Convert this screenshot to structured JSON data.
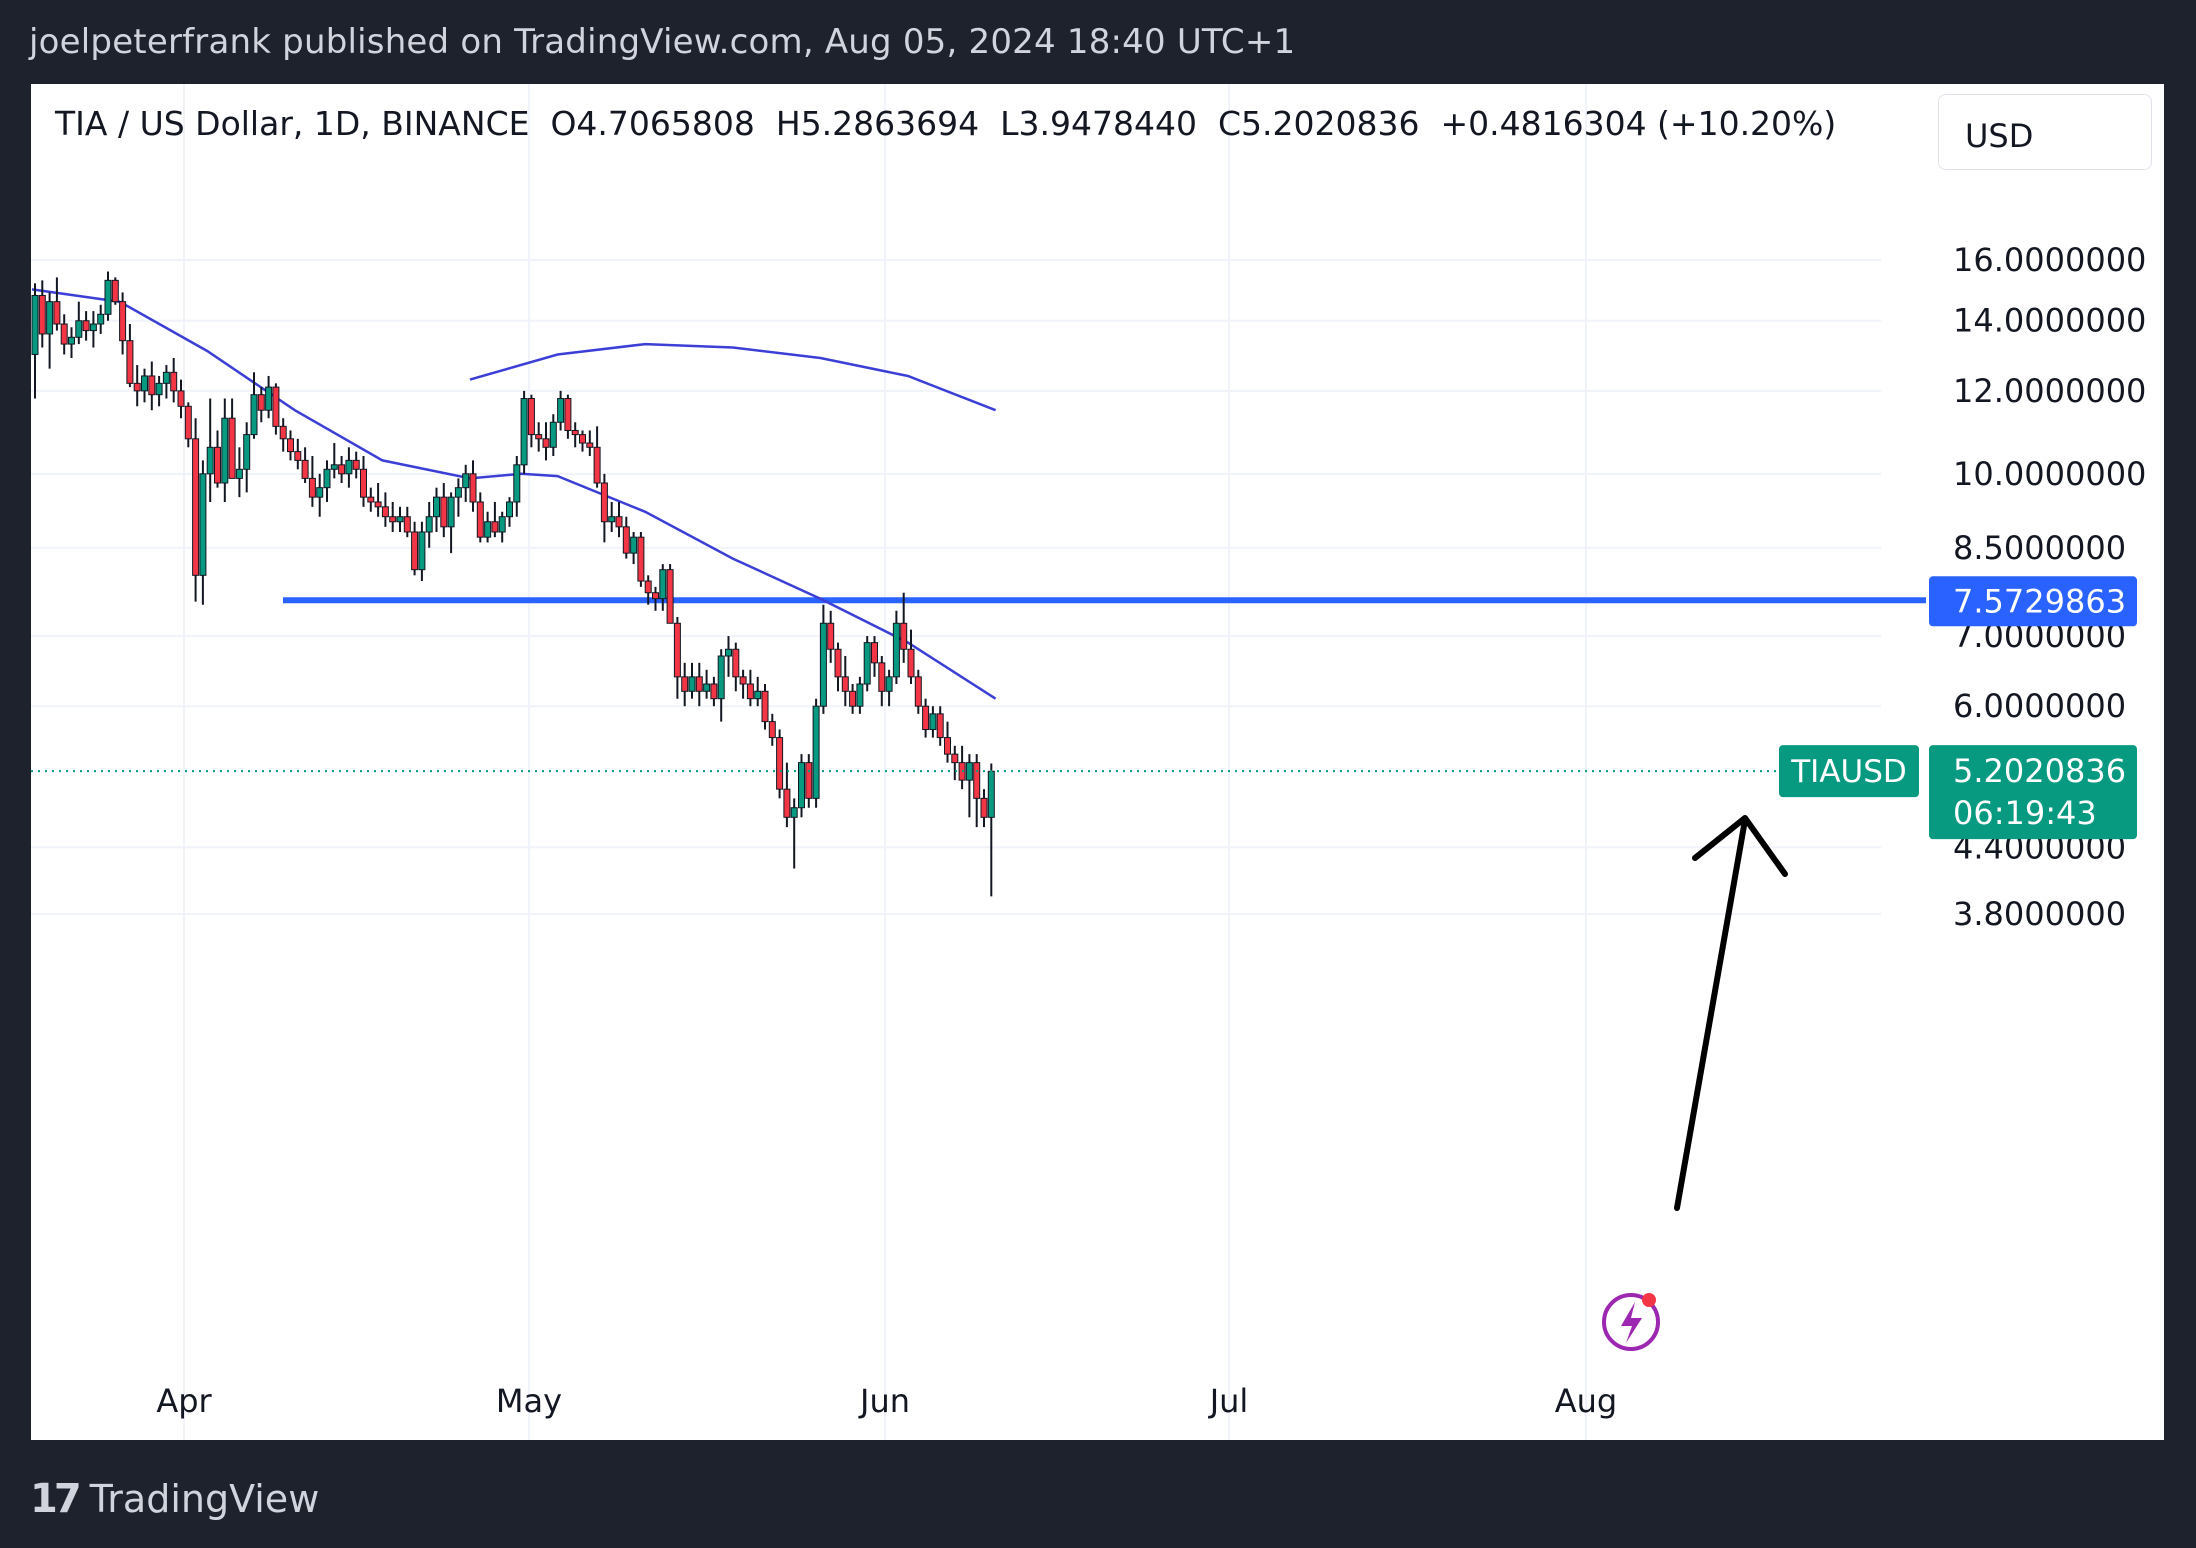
{
  "header": {
    "publish_line": "joelpeterfrank published on TradingView.com, Aug 05, 2024 18:40 UTC+1"
  },
  "legend": {
    "symbol": "TIA / US Dollar, 1D, BINANCE",
    "open": "O4.7065808",
    "high": "H5.2863694",
    "low": "L3.9478440",
    "close": "C5.2020836",
    "change": "+0.4816304 (+10.20%)"
  },
  "currency": "USD",
  "price_axis": {
    "ticks": [
      "16.0000000",
      "14.0000000",
      "12.0000000",
      "10.0000000",
      "8.5000000",
      "7.0000000",
      "6.0000000",
      "4.4000000",
      "3.8000000"
    ],
    "highlight_label": "7.5729863",
    "symbol_tag": "TIAUSD",
    "last_price": "5.2020836",
    "countdown": "06:19:43"
  },
  "time_axis": {
    "ticks": [
      "Apr",
      "May",
      "Jun",
      "Jul",
      "Aug"
    ]
  },
  "footer": {
    "brand": "TradingView"
  },
  "colors": {
    "up": "#089981",
    "down": "#f23645",
    "ma": "#3c3fd6",
    "level": "#2962ff",
    "badge": "#089981",
    "background": "#1e222d"
  },
  "chart_data": {
    "type": "candlestick",
    "title": "TIA / US Dollar, 1D, BINANCE",
    "x_ticks": [
      "Apr",
      "May",
      "Jun",
      "Jul",
      "Aug"
    ],
    "y_ticks": [
      16.0,
      14.0,
      12.0,
      10.0,
      8.5,
      7.0,
      6.0,
      4.4,
      3.8
    ],
    "y_scale": "log",
    "horizontal_level": 7.5729863,
    "last_close": 5.2020836,
    "ohlc_last": {
      "open": 4.7065808,
      "high": 5.2863694,
      "low": 3.947844,
      "close": 5.2020836,
      "change": 0.4816304,
      "change_pct": 10.2
    },
    "candles": [
      [
        13.0,
        15.2,
        11.8,
        14.8
      ],
      [
        14.8,
        15.3,
        13.2,
        13.6
      ],
      [
        13.6,
        14.9,
        12.6,
        14.6
      ],
      [
        14.6,
        15.4,
        13.7,
        13.9
      ],
      [
        13.9,
        14.2,
        13.0,
        13.3
      ],
      [
        13.3,
        13.8,
        12.9,
        13.5
      ],
      [
        13.5,
        14.6,
        13.3,
        14.0
      ],
      [
        14.0,
        14.3,
        13.4,
        13.7
      ],
      [
        13.7,
        14.3,
        13.2,
        13.9
      ],
      [
        13.9,
        14.5,
        13.6,
        14.2
      ],
      [
        14.2,
        15.6,
        14.0,
        15.3
      ],
      [
        15.3,
        15.4,
        14.5,
        14.6
      ],
      [
        14.6,
        14.9,
        13.0,
        13.4
      ],
      [
        13.4,
        13.9,
        12.1,
        12.2
      ],
      [
        12.2,
        12.7,
        11.6,
        12.0
      ],
      [
        12.0,
        12.6,
        11.7,
        12.4
      ],
      [
        12.4,
        12.8,
        11.5,
        11.9
      ],
      [
        11.9,
        12.4,
        11.6,
        12.2
      ],
      [
        12.2,
        12.7,
        11.8,
        12.5
      ],
      [
        12.5,
        12.9,
        11.7,
        12.0
      ],
      [
        12.0,
        12.3,
        11.3,
        11.6
      ],
      [
        11.6,
        11.7,
        10.6,
        10.8
      ],
      [
        10.8,
        11.3,
        7.55,
        8.0
      ],
      [
        8.0,
        10.3,
        7.5,
        10.0
      ],
      [
        10.0,
        11.8,
        9.4,
        10.6
      ],
      [
        10.6,
        11.0,
        9.7,
        9.8
      ],
      [
        9.8,
        11.8,
        9.4,
        11.3
      ],
      [
        11.3,
        11.8,
        9.9,
        9.9
      ],
      [
        9.9,
        10.6,
        9.5,
        10.1
      ],
      [
        10.1,
        11.2,
        9.6,
        10.9
      ],
      [
        10.9,
        12.5,
        10.8,
        11.9
      ],
      [
        11.9,
        12.1,
        11.2,
        11.5
      ],
      [
        11.5,
        12.4,
        11.3,
        12.1
      ],
      [
        12.1,
        12.2,
        10.9,
        11.1
      ],
      [
        11.1,
        11.3,
        10.5,
        10.8
      ],
      [
        10.8,
        11.0,
        10.3,
        10.5
      ],
      [
        10.5,
        10.8,
        10.1,
        10.3
      ],
      [
        10.3,
        10.6,
        9.8,
        9.9
      ],
      [
        9.9,
        10.4,
        9.3,
        9.5
      ],
      [
        9.5,
        10.0,
        9.1,
        9.7
      ],
      [
        9.7,
        10.3,
        9.4,
        10.1
      ],
      [
        10.1,
        10.7,
        9.9,
        10.2
      ],
      [
        10.2,
        10.4,
        9.8,
        10.0
      ],
      [
        10.0,
        10.6,
        9.7,
        10.3
      ],
      [
        10.3,
        10.5,
        9.9,
        10.1
      ],
      [
        10.1,
        10.4,
        9.3,
        9.5
      ],
      [
        9.5,
        9.7,
        9.2,
        9.4
      ],
      [
        9.4,
        9.8,
        9.1,
        9.3
      ],
      [
        9.3,
        9.6,
        8.9,
        9.1
      ],
      [
        9.1,
        9.4,
        8.8,
        9.0
      ],
      [
        9.0,
        9.3,
        8.8,
        9.1
      ],
      [
        9.1,
        9.3,
        8.7,
        8.8
      ],
      [
        8.8,
        9.0,
        8.0,
        8.1
      ],
      [
        8.1,
        9.0,
        7.9,
        8.8
      ],
      [
        8.8,
        9.4,
        8.5,
        9.1
      ],
      [
        9.1,
        9.7,
        8.8,
        9.5
      ],
      [
        9.5,
        9.8,
        8.7,
        8.9
      ],
      [
        8.9,
        9.6,
        8.4,
        9.5
      ],
      [
        9.5,
        9.9,
        9.1,
        9.7
      ],
      [
        9.7,
        10.2,
        9.4,
        10.0
      ],
      [
        10.0,
        10.3,
        9.2,
        9.4
      ],
      [
        9.4,
        9.6,
        8.6,
        8.7
      ],
      [
        8.7,
        9.2,
        8.6,
        9.0
      ],
      [
        9.0,
        9.4,
        8.7,
        8.8
      ],
      [
        8.8,
        9.2,
        8.6,
        9.1
      ],
      [
        9.1,
        9.5,
        8.9,
        9.4
      ],
      [
        9.4,
        10.4,
        9.1,
        10.2
      ],
      [
        10.2,
        12.0,
        10.0,
        11.8
      ],
      [
        11.8,
        11.9,
        10.6,
        10.9
      ],
      [
        10.9,
        11.2,
        10.5,
        10.8
      ],
      [
        10.8,
        11.2,
        10.3,
        10.6
      ],
      [
        10.6,
        11.4,
        10.4,
        11.2
      ],
      [
        11.2,
        12.0,
        11.0,
        11.8
      ],
      [
        11.8,
        11.9,
        10.8,
        11.0
      ],
      [
        11.0,
        11.2,
        10.6,
        10.9
      ],
      [
        10.9,
        11.0,
        10.5,
        10.7
      ],
      [
        10.7,
        11.0,
        10.4,
        10.6
      ],
      [
        10.6,
        11.1,
        9.7,
        9.8
      ],
      [
        9.8,
        10.0,
        8.6,
        9.0
      ],
      [
        9.0,
        9.4,
        8.8,
        9.1
      ],
      [
        9.1,
        9.4,
        8.7,
        8.9
      ],
      [
        8.9,
        9.1,
        8.3,
        8.4
      ],
      [
        8.4,
        8.8,
        8.2,
        8.7
      ],
      [
        8.7,
        8.8,
        7.8,
        7.9
      ],
      [
        7.9,
        8.0,
        7.5,
        7.7
      ],
      [
        7.7,
        7.8,
        7.4,
        7.6
      ],
      [
        7.6,
        8.2,
        7.4,
        8.1
      ],
      [
        8.1,
        8.2,
        7.2,
        7.2
      ],
      [
        7.2,
        7.3,
        6.1,
        6.4
      ],
      [
        6.4,
        6.6,
        6.0,
        6.2
      ],
      [
        6.2,
        6.6,
        6.1,
        6.4
      ],
      [
        6.4,
        6.6,
        6.0,
        6.2
      ],
      [
        6.2,
        6.5,
        6.1,
        6.3
      ],
      [
        6.3,
        6.4,
        6.0,
        6.1
      ],
      [
        6.1,
        6.8,
        5.8,
        6.7
      ],
      [
        6.7,
        7.0,
        6.4,
        6.8
      ],
      [
        6.8,
        6.9,
        6.2,
        6.4
      ],
      [
        6.4,
        6.5,
        6.1,
        6.3
      ],
      [
        6.3,
        6.5,
        6.0,
        6.1
      ],
      [
        6.1,
        6.4,
        6.0,
        6.2
      ],
      [
        6.2,
        6.3,
        5.7,
        5.8
      ],
      [
        5.8,
        5.9,
        5.5,
        5.6
      ],
      [
        5.6,
        5.7,
        4.9,
        5.0
      ],
      [
        5.0,
        5.3,
        4.6,
        4.7
      ],
      [
        4.7,
        4.9,
        4.2,
        4.8
      ],
      [
        4.8,
        5.4,
        4.7,
        5.3
      ],
      [
        5.3,
        5.4,
        4.8,
        4.9
      ],
      [
        4.9,
        6.1,
        4.8,
        6.0
      ],
      [
        6.0,
        7.5,
        5.9,
        7.2
      ],
      [
        7.2,
        7.4,
        6.6,
        6.8
      ],
      [
        6.8,
        6.9,
        6.2,
        6.4
      ],
      [
        6.4,
        6.7,
        6.0,
        6.2
      ],
      [
        6.2,
        6.3,
        5.9,
        6.0
      ],
      [
        6.0,
        6.4,
        5.9,
        6.3
      ],
      [
        6.3,
        7.0,
        6.2,
        6.9
      ],
      [
        6.9,
        7.0,
        6.4,
        6.6
      ],
      [
        6.6,
        6.7,
        6.0,
        6.2
      ],
      [
        6.2,
        6.5,
        6.0,
        6.4
      ],
      [
        6.4,
        7.4,
        6.3,
        7.2
      ],
      [
        7.2,
        7.7,
        6.6,
        6.8
      ],
      [
        6.8,
        7.1,
        6.3,
        6.4
      ],
      [
        6.4,
        6.5,
        5.9,
        6.0
      ],
      [
        6.0,
        6.1,
        5.6,
        5.7
      ],
      [
        5.7,
        6.0,
        5.6,
        5.9
      ],
      [
        5.9,
        6.0,
        5.5,
        5.6
      ],
      [
        5.6,
        5.8,
        5.3,
        5.4
      ],
      [
        5.4,
        5.5,
        5.1,
        5.3
      ],
      [
        5.3,
        5.5,
        5.0,
        5.1
      ],
      [
        5.1,
        5.4,
        4.7,
        5.3
      ],
      [
        5.3,
        5.4,
        4.6,
        4.9
      ],
      [
        4.9,
        5.0,
        4.6,
        4.7
      ],
      [
        4.7,
        5.29,
        3.95,
        5.2
      ]
    ],
    "ma_short_points": [
      [
        0,
        15.0
      ],
      [
        12,
        14.6
      ],
      [
        24,
        13.1
      ],
      [
        36,
        11.5
      ],
      [
        48,
        10.3
      ],
      [
        60,
        9.9
      ],
      [
        67,
        10.0
      ],
      [
        72,
        9.95
      ],
      [
        84,
        9.2
      ],
      [
        96,
        8.3
      ],
      [
        108,
        7.6
      ],
      [
        120,
        6.9
      ],
      [
        132,
        6.1
      ]
    ],
    "ma_long_points": [
      [
        60,
        12.3
      ],
      [
        72,
        13.0
      ],
      [
        84,
        13.3
      ],
      [
        96,
        13.2
      ],
      [
        108,
        12.9
      ],
      [
        120,
        12.4
      ],
      [
        132,
        11.5
      ]
    ]
  }
}
